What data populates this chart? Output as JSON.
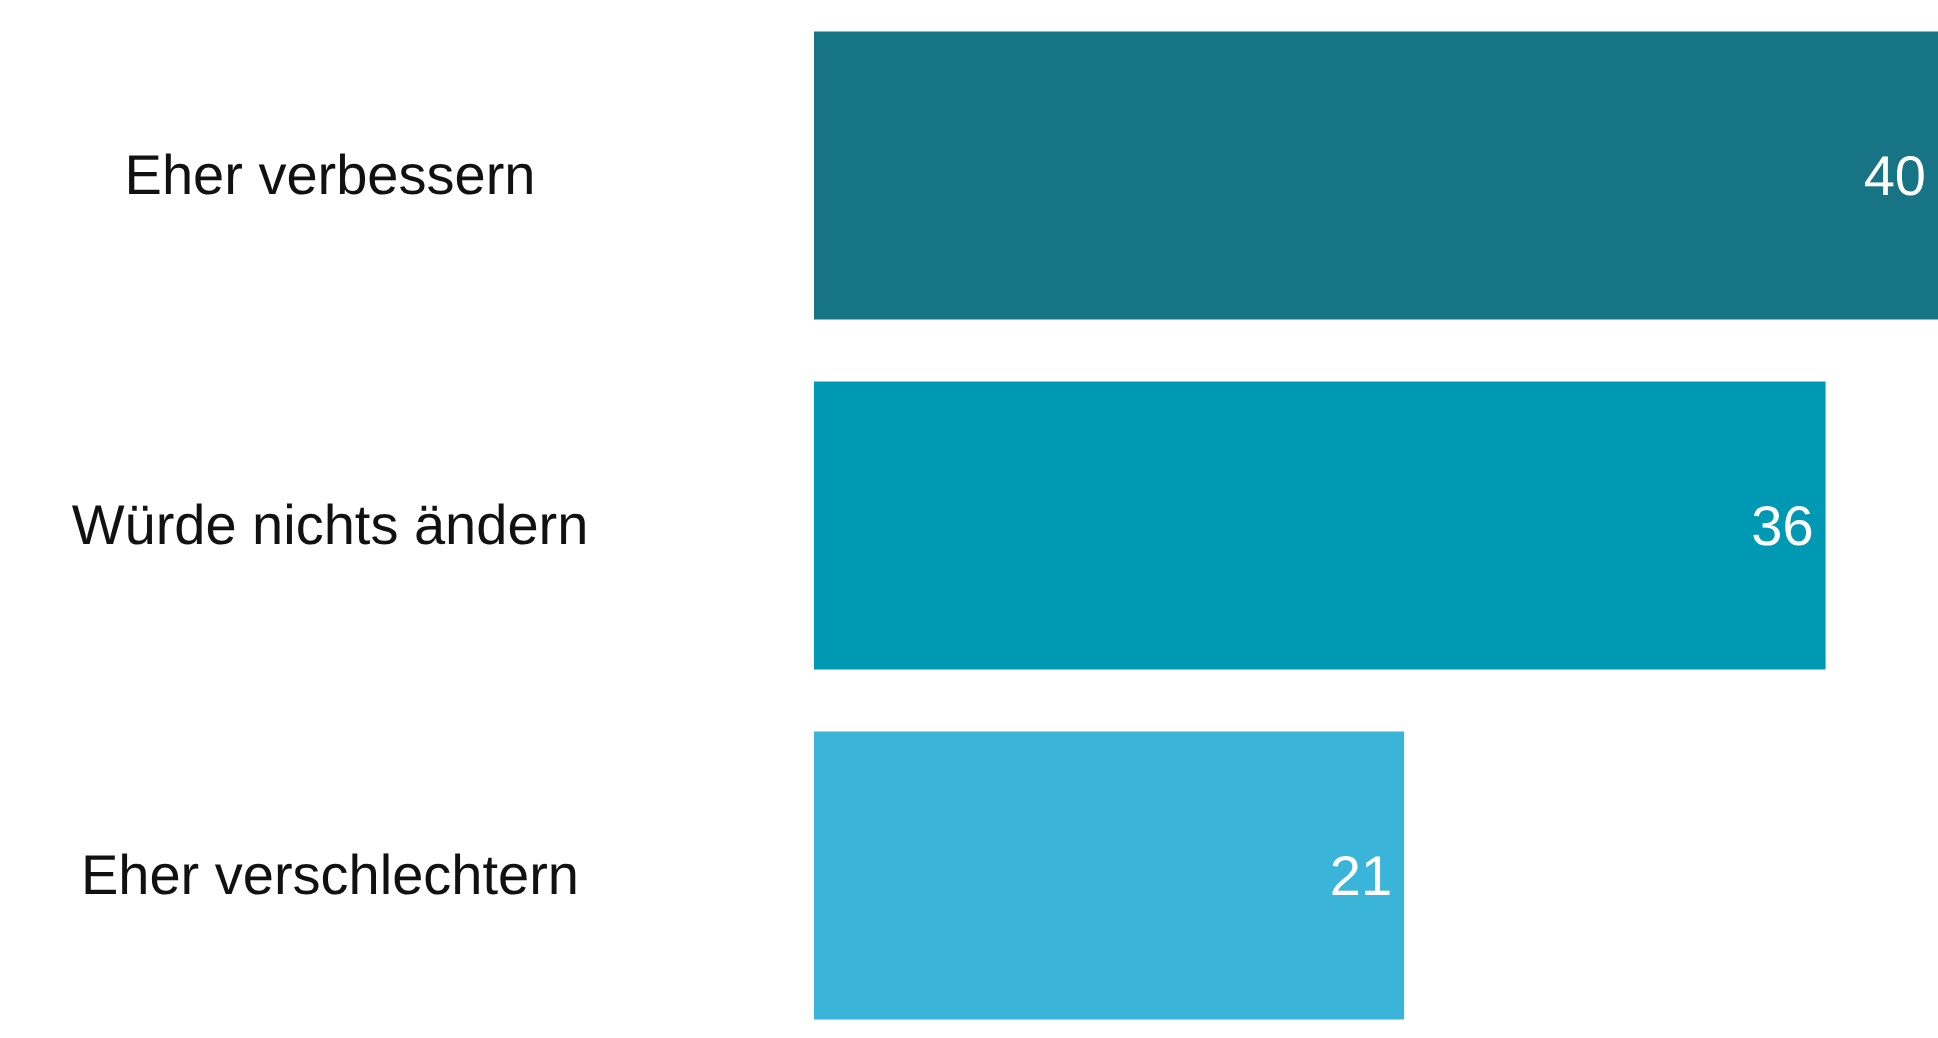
{
  "chart_data": {
    "type": "bar",
    "orientation": "horizontal",
    "categories": [
      "Eher verbessern",
      "Würde nichts ändern",
      "Eher verschlechtern"
    ],
    "values": [
      40,
      36,
      21
    ],
    "colors": [
      "#177485",
      "#0099b3",
      "#3bb4da"
    ],
    "data_labels": true
  }
}
